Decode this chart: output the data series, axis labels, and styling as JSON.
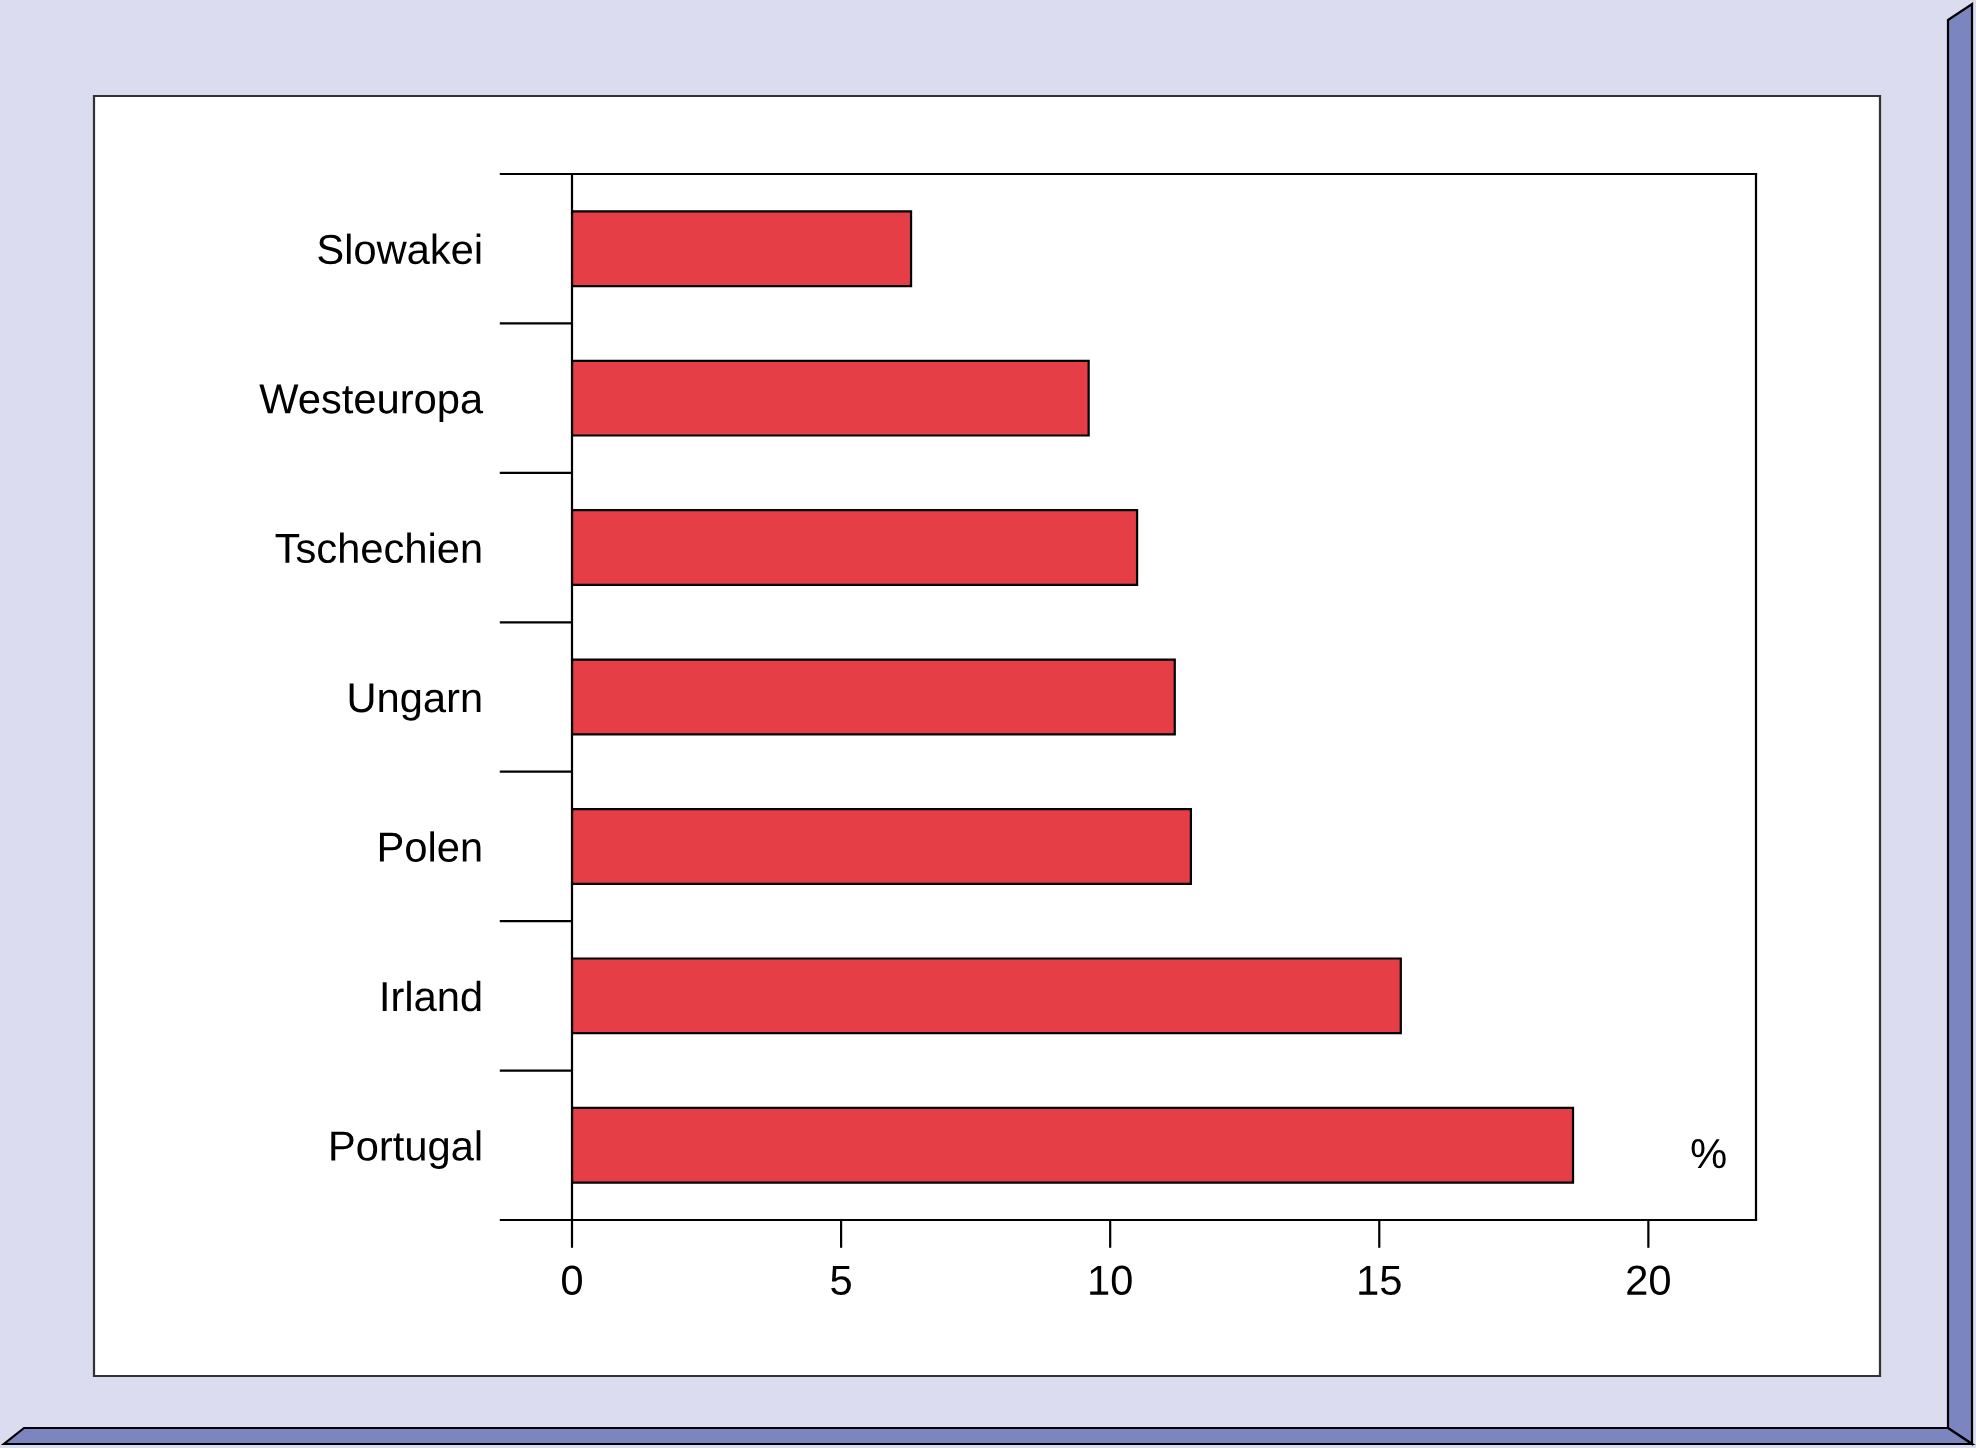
{
  "chart_data": {
    "type": "bar",
    "orientation": "horizontal",
    "categories": [
      "Slowakei",
      "Westeuropa",
      "Tschechien",
      "Ungarn",
      "Polen",
      "Irland",
      "Portugal"
    ],
    "values": [
      6.3,
      9.6,
      10.5,
      11.2,
      11.5,
      15.4,
      18.6
    ],
    "color": "#e63e46",
    "xlim": [
      0,
      22
    ],
    "xticks": [
      0,
      5,
      10,
      15,
      20
    ],
    "annotations": [
      "%"
    ],
    "grid": false,
    "legend": false
  }
}
